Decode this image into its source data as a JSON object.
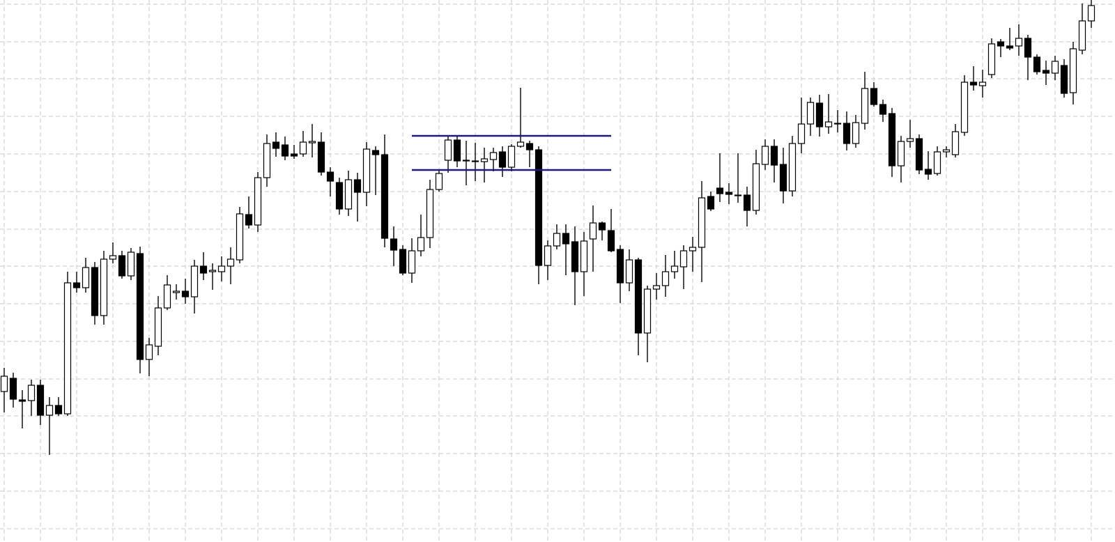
{
  "chart_data": {
    "type": "candlestick",
    "open": [
      216,
      235,
      204,
      203,
      225,
      182,
      196,
      184,
      372,
      365,
      394,
      325,
      406,
      411,
      382,
      414,
      262,
      281,
      336,
      358,
      360,
      352,
      396,
      388,
      388,
      396,
      405,
      470,
      455,
      523,
      574,
      570,
      557,
      557,
      573,
      574,
      531,
      516,
      478,
      520,
      502,
      562,
      556,
      435,
      420,
      386,
      418,
      437,
      506,
      548,
      577,
      547,
      547,
      546,
      549,
      560,
      538,
      568,
      572,
      563,
      397,
      425,
      443,
      431,
      388,
      435,
      458,
      447,
      420,
      372,
      405,
      300,
      363,
      368,
      388,
      395,
      418,
      423,
      496,
      508,
      502,
      498,
      498,
      476,
      542,
      568,
      542,
      504,
      572,
      600,
      630,
      596,
      601,
      601,
      572,
      601,
      651,
      628,
      615,
      540,
      575,
      579,
      535,
      529,
      560,
      556,
      588,
      660,
      655,
      671,
      718,
      712,
      712,
      723,
      696,
      677,
      673,
      684,
      645,
      706,
      748
    ],
    "high": [
      250,
      243,
      218,
      233,
      233,
      208,
      208,
      388,
      388,
      408,
      402,
      418,
      430,
      418,
      422,
      424,
      293,
      353,
      383,
      370,
      378,
      405,
      416,
      400,
      410,
      423,
      481,
      496,
      531,
      585,
      588,
      582,
      570,
      590,
      600,
      588,
      538,
      523,
      533,
      530,
      574,
      568,
      585,
      453,
      426,
      436,
      470,
      520,
      533,
      583,
      583,
      576,
      573,
      566,
      566,
      568,
      571,
      652,
      576,
      568,
      433,
      456,
      456,
      453,
      445,
      483,
      460,
      478,
      426,
      420,
      408,
      368,
      386,
      412,
      418,
      426,
      438,
      518,
      503,
      558,
      515,
      558,
      510,
      563,
      578,
      578,
      566,
      583,
      638,
      638,
      642,
      643,
      620,
      618,
      613,
      675,
      660,
      635,
      623,
      583,
      606,
      585,
      561,
      568,
      568,
      600,
      670,
      683,
      678,
      723,
      722,
      738,
      743,
      728,
      700,
      691,
      698,
      693,
      718,
      773,
      778
    ],
    "low": [
      186,
      193,
      163,
      181,
      168,
      125,
      181,
      181,
      358,
      358,
      312,
      312,
      400,
      378,
      376,
      242,
      238,
      268,
      333,
      348,
      342,
      328,
      376,
      362,
      374,
      370,
      400,
      450,
      445,
      510,
      553,
      548,
      550,
      553,
      552,
      526,
      496,
      470,
      468,
      460,
      482,
      498,
      423,
      396,
      383,
      372,
      410,
      422,
      503,
      530,
      538,
      512,
      518,
      516,
      532,
      524,
      532,
      566,
      538,
      370,
      376,
      420,
      383,
      340,
      353,
      388,
      433,
      416,
      343,
      360,
      268,
      258,
      348,
      352,
      378,
      363,
      388,
      373,
      475,
      488,
      485,
      487,
      453,
      470,
      534,
      516,
      486,
      496,
      558,
      583,
      582,
      586,
      588,
      562,
      566,
      592,
      625,
      603,
      524,
      516,
      566,
      528,
      520,
      526,
      552,
      552,
      583,
      648,
      638,
      666,
      696,
      706,
      698,
      663,
      671,
      656,
      663,
      638,
      628,
      700,
      738
    ],
    "close": [
      238,
      205,
      202,
      225,
      182,
      196,
      184,
      372,
      365,
      394,
      325,
      406,
      411,
      382,
      416,
      262,
      283,
      336,
      369,
      360,
      352,
      396,
      386,
      390,
      396,
      406,
      471,
      455,
      523,
      572,
      565,
      554,
      554,
      574,
      575,
      531,
      518,
      478,
      520,
      502,
      564,
      556,
      436,
      419,
      386,
      418,
      437,
      506,
      529,
      577,
      547,
      548,
      547,
      550,
      559,
      538,
      568,
      574,
      563,
      397,
      425,
      443,
      428,
      388,
      432,
      458,
      448,
      418,
      372,
      405,
      300,
      363,
      368,
      388,
      396,
      418,
      423,
      494,
      478,
      500,
      499,
      498,
      476,
      543,
      568,
      541,
      504,
      572,
      600,
      631,
      596,
      603,
      601,
      572,
      602,
      651,
      628,
      614,
      540,
      575,
      579,
      534,
      528,
      560,
      563,
      589,
      660,
      656,
      660,
      715,
      712,
      709,
      723,
      696,
      675,
      673,
      690,
      644,
      708,
      748,
      770
    ],
    "up_color": "#ffffff",
    "down_color": "#000000",
    "ylim": [
      0,
      778
    ],
    "yticks": [
      19,
      73,
      127,
      181,
      234,
      288,
      342,
      396,
      449,
      503,
      557,
      611,
      665,
      718,
      772
    ],
    "grid": true,
    "hlines": [
      {
        "value": 583,
        "color": "#1c1c78"
      },
      {
        "value": 534,
        "color": "#1c1c78"
      }
    ]
  }
}
